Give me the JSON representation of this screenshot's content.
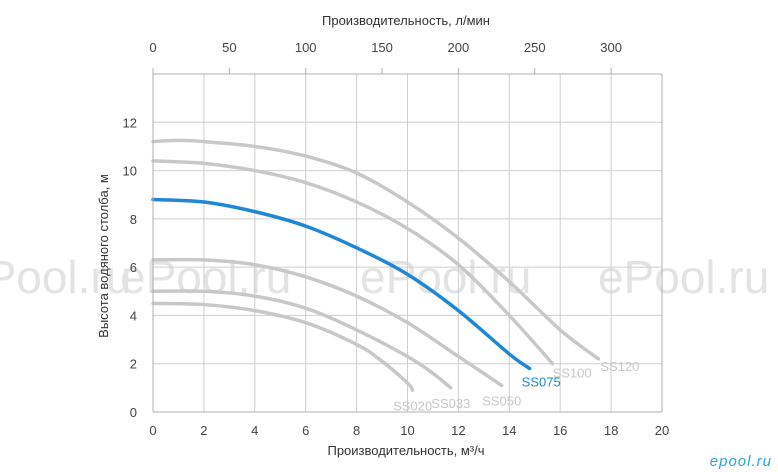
{
  "chart_data": {
    "type": "line",
    "xlabel": "Производительность, м³/ч",
    "x2label": "Производительность, л/мин",
    "ylabel": "Высота водяного столба, м",
    "xlim": [
      0,
      20
    ],
    "ylim": [
      0,
      14
    ],
    "x_ticks": [
      "0",
      "2",
      "4",
      "6",
      "8",
      "10",
      "12",
      "14",
      "16",
      "18",
      "20"
    ],
    "y_ticks": [
      "0",
      "2",
      "4",
      "6",
      "8",
      "10",
      "12"
    ],
    "x2_ticks": [
      "0",
      "50",
      "100",
      "150",
      "200",
      "250",
      "300"
    ],
    "grid": true,
    "series": [
      {
        "name": "SS020",
        "color": "#c8c8c8",
        "points": [
          [
            0,
            4.5
          ],
          [
            2,
            4.45
          ],
          [
            4,
            4.2
          ],
          [
            6,
            3.7
          ],
          [
            8,
            2.8
          ],
          [
            9,
            2.1
          ],
          [
            10,
            1.2
          ],
          [
            10.2,
            0.9
          ]
        ]
      },
      {
        "name": "SS033",
        "color": "#c8c8c8",
        "points": [
          [
            0,
            5.0
          ],
          [
            2,
            5.0
          ],
          [
            4,
            4.8
          ],
          [
            6,
            4.3
          ],
          [
            8,
            3.4
          ],
          [
            10,
            2.3
          ],
          [
            11,
            1.6
          ],
          [
            11.7,
            1.0
          ]
        ]
      },
      {
        "name": "SS050",
        "color": "#c8c8c8",
        "points": [
          [
            0,
            6.3
          ],
          [
            2,
            6.3
          ],
          [
            4,
            6.1
          ],
          [
            6,
            5.6
          ],
          [
            8,
            4.8
          ],
          [
            10,
            3.7
          ],
          [
            12,
            2.3
          ],
          [
            13.7,
            1.1
          ]
        ]
      },
      {
        "name": "SS075",
        "color": "#1e88d6",
        "points": [
          [
            0,
            8.8
          ],
          [
            2,
            8.7
          ],
          [
            4,
            8.3
          ],
          [
            6,
            7.7
          ],
          [
            8,
            6.8
          ],
          [
            10,
            5.7
          ],
          [
            12,
            4.2
          ],
          [
            14,
            2.4
          ],
          [
            14.8,
            1.8
          ]
        ]
      },
      {
        "name": "SS100",
        "color": "#c8c8c8",
        "points": [
          [
            0,
            10.4
          ],
          [
            2,
            10.3
          ],
          [
            4,
            10.0
          ],
          [
            6,
            9.5
          ],
          [
            8,
            8.7
          ],
          [
            10,
            7.6
          ],
          [
            12,
            6.1
          ],
          [
            14,
            4.0
          ],
          [
            15.7,
            2.0
          ]
        ]
      },
      {
        "name": "SS120",
        "color": "#c8c8c8",
        "points": [
          [
            0,
            11.2
          ],
          [
            1,
            11.25
          ],
          [
            2,
            11.2
          ],
          [
            4,
            11.0
          ],
          [
            6,
            10.6
          ],
          [
            8,
            9.9
          ],
          [
            10,
            8.7
          ],
          [
            12,
            7.2
          ],
          [
            14,
            5.4
          ],
          [
            16,
            3.4
          ],
          [
            17.5,
            2.2
          ]
        ]
      }
    ]
  },
  "watermark": [
    "ePool.ru",
    "ePool.ru",
    "ePool.ru",
    "ePool.ru"
  ],
  "corner_watermark": "epool.ru"
}
